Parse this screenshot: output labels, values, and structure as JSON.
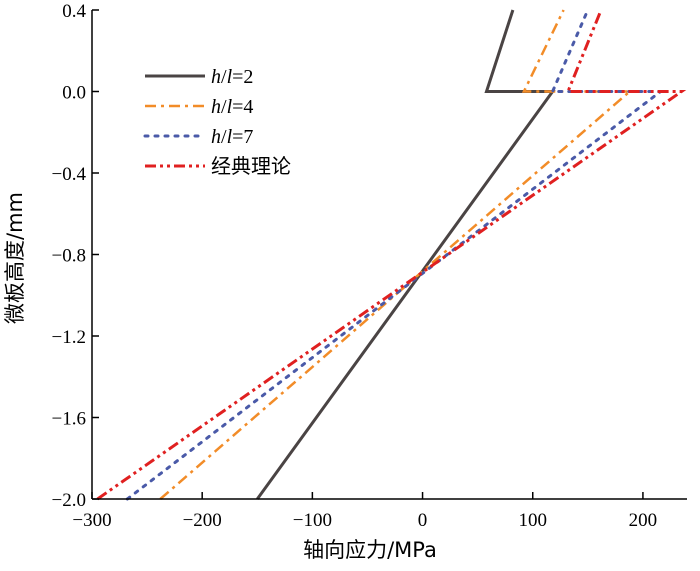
{
  "chart_data": {
    "type": "line",
    "xlabel": "轴向应力/MPa",
    "ylabel": "微板高度/mm",
    "xlim": [
      -300,
      240
    ],
    "ylim": [
      -2.0,
      0.4
    ],
    "xticks": [
      {
        "value": -300,
        "label": "−300"
      },
      {
        "value": -200,
        "label": "−200"
      },
      {
        "value": -100,
        "label": "−100"
      },
      {
        "value": 0,
        "label": "0"
      },
      {
        "value": 100,
        "label": "100"
      },
      {
        "value": 200,
        "label": "200"
      }
    ],
    "yticks": [
      {
        "value": 0.4,
        "label": "0.4"
      },
      {
        "value": 0.0,
        "label": "0.0"
      },
      {
        "value": -0.4,
        "label": "−0.4"
      },
      {
        "value": -0.8,
        "label": "−0.8"
      },
      {
        "value": -1.2,
        "label": "−1.2"
      },
      {
        "value": -1.6,
        "label": "−1.6"
      },
      {
        "value": -2.0,
        "label": "−2.0"
      }
    ],
    "grid": false,
    "legend": "top-left",
    "series": [
      {
        "name": "h/l=2",
        "name_italic": "h",
        "name_sep": "/",
        "name_italic2": "l",
        "name_rest": "=2",
        "color": "#4a4444",
        "style": "solid",
        "points": [
          [
            -150,
            -2.0
          ],
          [
            118,
            0.0
          ],
          [
            58,
            0.0
          ],
          [
            82,
            0.4
          ]
        ]
      },
      {
        "name": "h/l=4",
        "name_italic": "h",
        "name_sep": "/",
        "name_italic2": "l",
        "name_rest": "=4",
        "color": "#f28c28",
        "style": "dashdot",
        "points": [
          [
            -238,
            -2.0
          ],
          [
            188,
            0.0
          ],
          [
            92,
            0.0
          ],
          [
            128,
            0.4
          ]
        ]
      },
      {
        "name": "h/l=7",
        "name_italic": "h",
        "name_sep": "/",
        "name_italic2": "l",
        "name_rest": "=7",
        "color": "#4a5aa8",
        "style": "dotted",
        "points": [
          [
            -268,
            -2.0
          ],
          [
            216,
            0.0
          ],
          [
            118,
            0.0
          ],
          [
            150,
            0.4
          ]
        ]
      },
      {
        "name": "经典理论",
        "color": "#e02020",
        "style": "dashdotdot",
        "points": [
          [
            -295,
            -2.0
          ],
          [
            235,
            0.0
          ],
          [
            132,
            0.0
          ],
          [
            162,
            0.4
          ]
        ]
      }
    ]
  }
}
